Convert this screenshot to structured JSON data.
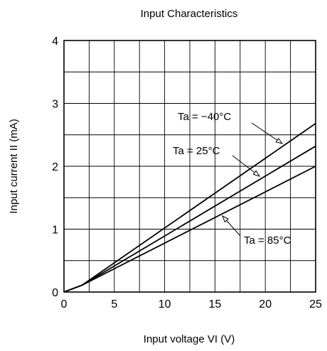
{
  "chart_data": {
    "type": "line",
    "title": "Input Characteristics",
    "xlabel": "Input voltage  VI (V)",
    "ylabel": "Input current  II (mA)",
    "xlim": [
      0,
      25
    ],
    "ylim": [
      0,
      4
    ],
    "x_ticks": [
      0,
      5,
      10,
      15,
      20,
      25
    ],
    "y_ticks": [
      0,
      1,
      2,
      3,
      4
    ],
    "grid": true,
    "series": [
      {
        "name": "Ta = −40°C",
        "x": [
          0,
          1.8,
          25
        ],
        "y": [
          0,
          0.11,
          2.68
        ]
      },
      {
        "name": "Ta = 25°C",
        "x": [
          0,
          1.8,
          25
        ],
        "y": [
          0,
          0.11,
          2.32
        ]
      },
      {
        "name": "Ta = 85°C",
        "x": [
          0,
          1.8,
          25
        ],
        "y": [
          0,
          0.11,
          2.0
        ]
      }
    ],
    "annotations": [
      {
        "text": "Ta = −40°C",
        "series": 0
      },
      {
        "text": "Ta = 25°C",
        "series": 1
      },
      {
        "text": "Ta = 85°C",
        "series": 2
      }
    ],
    "line_color": "#000000"
  }
}
